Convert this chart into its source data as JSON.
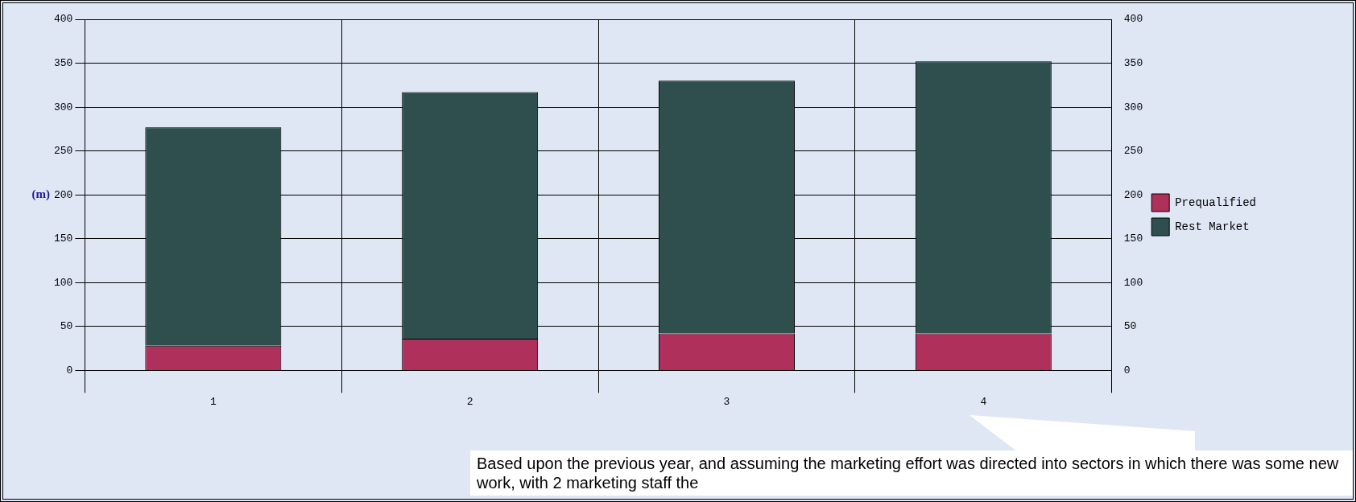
{
  "chart_data": {
    "type": "bar",
    "ylabel": "(m)",
    "categories": [
      "1",
      "2",
      "3",
      "4"
    ],
    "stacked": true,
    "series": [
      {
        "name": "Prequalified",
        "color": "#b0305c",
        "values": [
          28,
          36,
          42,
          42
        ]
      },
      {
        "name": "Rest Market",
        "color": "#2f4f4f",
        "values": [
          249,
          281,
          288,
          310
        ]
      }
    ],
    "ylim": [
      0,
      400
    ],
    "yticks": [
      0,
      50,
      100,
      150,
      200,
      250,
      300,
      350,
      400
    ],
    "y2lim": [
      0,
      400
    ],
    "y2ticks": [
      0,
      50,
      100,
      150,
      200,
      250,
      300,
      350,
      400
    ],
    "grid": true,
    "legend": "right",
    "annotations": [
      "Based upon the previous year, and assuming the marketing effort was directed into sectors in which there was some new work, with 2 marketing staff the"
    ]
  }
}
